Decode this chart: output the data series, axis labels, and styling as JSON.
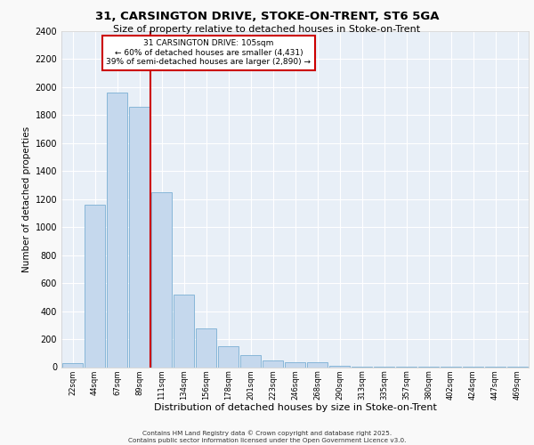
{
  "title_line1": "31, CARSINGTON DRIVE, STOKE-ON-TRENT, ST6 5GA",
  "title_line2": "Size of property relative to detached houses in Stoke-on-Trent",
  "xlabel": "Distribution of detached houses by size in Stoke-on-Trent",
  "ylabel": "Number of detached properties",
  "categories": [
    "22sqm",
    "44sqm",
    "67sqm",
    "89sqm",
    "111sqm",
    "134sqm",
    "156sqm",
    "178sqm",
    "201sqm",
    "223sqm",
    "246sqm",
    "268sqm",
    "290sqm",
    "313sqm",
    "335sqm",
    "357sqm",
    "380sqm",
    "402sqm",
    "424sqm",
    "447sqm",
    "469sqm"
  ],
  "values": [
    30,
    1160,
    1960,
    1860,
    1250,
    520,
    275,
    150,
    85,
    50,
    35,
    35,
    10,
    5,
    3,
    2,
    2,
    1,
    1,
    1,
    1
  ],
  "bar_color": "#c5d8ed",
  "bar_edge_color": "#7aafd4",
  "background_color": "#e8eff7",
  "grid_color": "#ffffff",
  "annotation_title": "31 CARSINGTON DRIVE: 105sqm",
  "annotation_line1": "← 60% of detached houses are smaller (4,431)",
  "annotation_line2": "39% of semi-detached houses are larger (2,890) →",
  "annotation_box_color": "#ffffff",
  "annotation_box_edge_color": "#cc0000",
  "ylim": [
    0,
    2400
  ],
  "yticks": [
    0,
    200,
    400,
    600,
    800,
    1000,
    1200,
    1400,
    1600,
    1800,
    2000,
    2200,
    2400
  ],
  "footer_line1": "Contains HM Land Registry data © Crown copyright and database right 2025.",
  "footer_line2": "Contains public sector information licensed under the Open Government Licence v3.0.",
  "fig_bg": "#f9f9f9"
}
